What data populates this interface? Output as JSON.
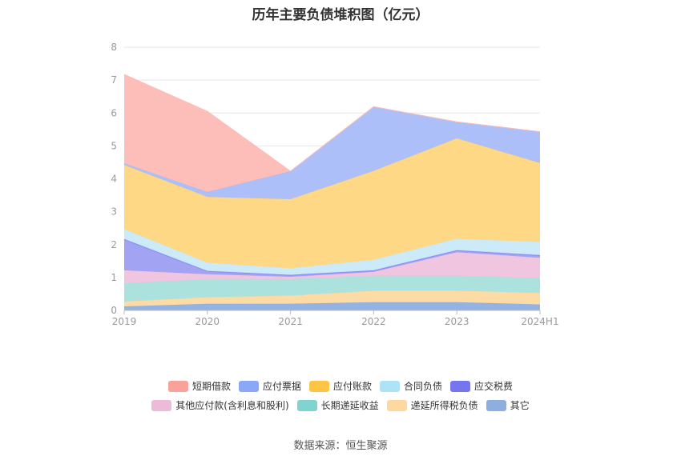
{
  "title": "历年主要负债堆积图（亿元）",
  "source": "数据来源：恒生聚源",
  "chart_data": {
    "type": "area",
    "stacked": true,
    "title": "历年主要负债堆积图（亿元）",
    "xlabel": "",
    "ylabel": "",
    "ylim": [
      0,
      8
    ],
    "yticks": [
      0,
      1,
      2,
      3,
      4,
      5,
      6,
      7,
      8
    ],
    "grid": true,
    "legend_position": "bottom",
    "x": [
      "2019",
      "2020",
      "2021",
      "2022",
      "2023",
      "2024H1"
    ],
    "series": [
      {
        "name": "其它",
        "color": "#8eaee0",
        "values": [
          0.12,
          0.2,
          0.2,
          0.25,
          0.25,
          0.18
        ]
      },
      {
        "name": "递延所得税负债",
        "color": "#fdd9a0",
        "values": [
          0.15,
          0.2,
          0.25,
          0.35,
          0.35,
          0.35
        ]
      },
      {
        "name": "长期递延收益",
        "color": "#a8e0dc",
        "values": [
          0.55,
          0.55,
          0.5,
          0.45,
          0.45,
          0.45
        ]
      },
      {
        "name": "其他应付款(含利息和股利)",
        "color": "#eec2de",
        "values": [
          0.4,
          0.15,
          0.07,
          0.12,
          0.72,
          0.62
        ]
      },
      {
        "name": "应交税费",
        "color": "#9d9ef2",
        "values": [
          0.95,
          0.1,
          0.06,
          0.05,
          0.06,
          0.08
        ]
      },
      {
        "name": "合同负债",
        "color": "#c9e9f7",
        "values": [
          0.3,
          0.25,
          0.2,
          0.32,
          0.35,
          0.4
        ]
      },
      {
        "name": "应付账款",
        "color": "#fed67e",
        "values": [
          1.95,
          2.0,
          2.1,
          2.7,
          3.05,
          2.4
        ]
      },
      {
        "name": "应付票据",
        "color": "#a8bcf8",
        "values": [
          0.05,
          0.15,
          0.85,
          1.95,
          0.5,
          0.95
        ]
      },
      {
        "name": "短期借款",
        "color": "#fdbbb6",
        "values": [
          2.7,
          2.45,
          0,
          0,
          0,
          0
        ]
      }
    ],
    "legend": [
      {
        "name": "短期借款",
        "color": "#f9a29b"
      },
      {
        "name": "应付票据",
        "color": "#8ba8f7"
      },
      {
        "name": "应付账款",
        "color": "#fec444"
      },
      {
        "name": "合同负债",
        "color": "#aee2f7"
      },
      {
        "name": "应交税费",
        "color": "#7475ef"
      },
      {
        "name": "其他应付款(含利息和股利)",
        "color": "#ebbbd8"
      },
      {
        "name": "长期递延收益",
        "color": "#7fd4d0"
      },
      {
        "name": "递延所得税负债",
        "color": "#fdd9a0"
      },
      {
        "name": "其它",
        "color": "#8eaee0"
      }
    ]
  }
}
